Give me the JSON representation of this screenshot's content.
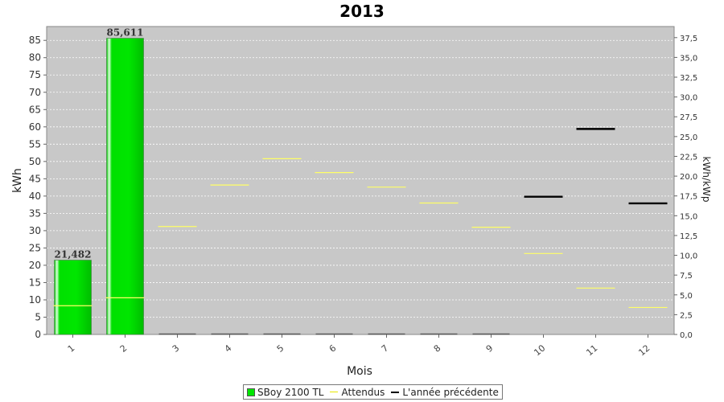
{
  "chart_data": {
    "type": "bar",
    "title": "2013",
    "xlabel": "Mois",
    "ylabel": "kWh",
    "ylabel_right": "kWh/kWp",
    "categories": [
      "1",
      "2",
      "3",
      "4",
      "5",
      "6",
      "7",
      "8",
      "9",
      "10",
      "11",
      "12"
    ],
    "ylim": [
      0,
      89
    ],
    "yticks": [
      0,
      5,
      10,
      15,
      20,
      25,
      30,
      35,
      40,
      45,
      50,
      55,
      60,
      65,
      70,
      75,
      80,
      85
    ],
    "ylim_right": [
      0,
      38.9
    ],
    "yticks_right": [
      "0,0",
      "2,5",
      "5,0",
      "7,5",
      "10,0",
      "12,5",
      "15,0",
      "17,5",
      "20,0",
      "22,5",
      "25,0",
      "27,5",
      "30,0",
      "32,5",
      "35,0",
      "37,5"
    ],
    "yticks_right_values": [
      0,
      2.5,
      5,
      7.5,
      10,
      12.5,
      15,
      17.5,
      20,
      22.5,
      25,
      27.5,
      30,
      32.5,
      35,
      37.5
    ],
    "grid": true,
    "legend_position": "bottom",
    "series": [
      {
        "name": "SBoy 2100 TL",
        "kind": "bar",
        "color": "#00e600",
        "values": [
          21.482,
          85.611,
          0,
          0,
          0,
          0,
          0,
          0,
          0,
          null,
          null,
          null
        ],
        "data_labels": [
          "21,482",
          "85,611",
          "",
          "",
          "",
          "",
          "",
          "",
          "",
          "",
          "",
          ""
        ]
      },
      {
        "name": "Attendus",
        "kind": "level",
        "color": "#ffff66",
        "values": [
          8.3,
          10.6,
          31.2,
          43.2,
          50.8,
          46.8,
          42.6,
          38.0,
          31.0,
          23.4,
          13.4,
          7.8
        ]
      },
      {
        "name": "L'année précédente",
        "kind": "level",
        "color": "#000000",
        "values": [
          null,
          null,
          null,
          null,
          null,
          null,
          null,
          null,
          null,
          39.8,
          59.4,
          37.9
        ]
      }
    ]
  },
  "legend": {
    "items": [
      {
        "label": "SBoy 2100 TL"
      },
      {
        "label": "Attendus"
      },
      {
        "label": "L'année précédente"
      }
    ]
  }
}
